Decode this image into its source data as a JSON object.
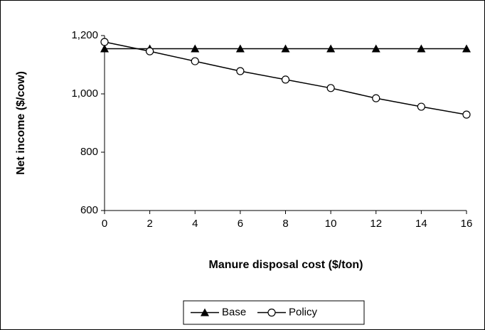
{
  "chart_data": {
    "type": "line",
    "x_label": "Manure disposal cost ($/ton)",
    "y_label": "Net income ($/cow)",
    "x": [
      0,
      2,
      4,
      6,
      8,
      10,
      12,
      14,
      16
    ],
    "series": [
      {
        "name": "Base",
        "color": "#000000",
        "marker": "triangle",
        "values": [
          1155,
          1155,
          1155,
          1155,
          1155,
          1155,
          1155,
          1155,
          1155
        ]
      },
      {
        "name": "Policy",
        "color": "#000000",
        "marker": "circle",
        "values": [
          1178,
          1146,
          1112,
          1078,
          1049,
          1020,
          985,
          956,
          929
        ]
      }
    ],
    "xlim": [
      0,
      16
    ],
    "xticks": [
      0,
      2,
      4,
      6,
      8,
      10,
      12,
      14,
      16
    ],
    "ylim": [
      600,
      1200
    ],
    "yticks": [
      600,
      800,
      {
        "value": 1000,
        "label": "1,000"
      },
      {
        "value": 1200,
        "label": "1,200"
      }
    ],
    "grid": false,
    "legend": "bottom"
  }
}
